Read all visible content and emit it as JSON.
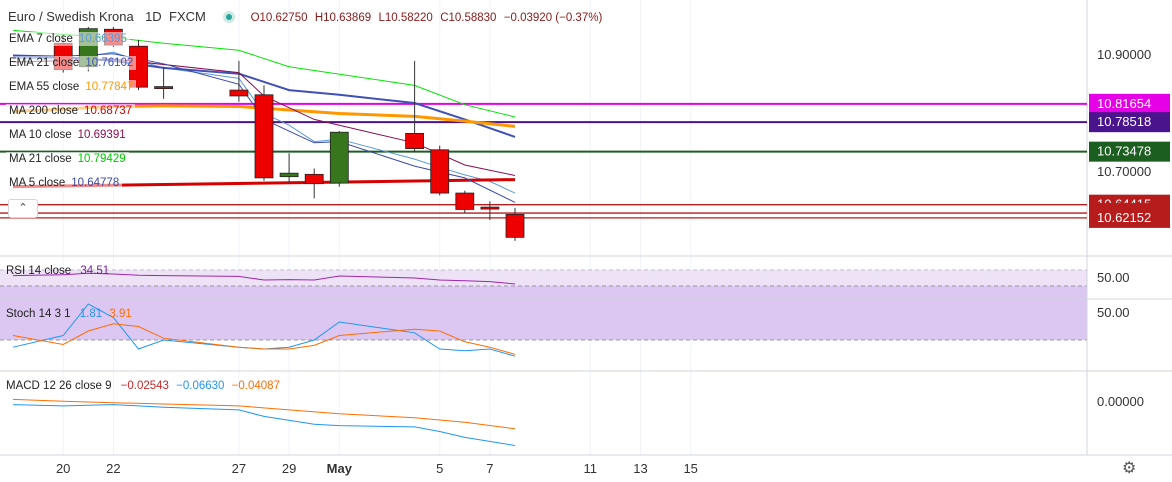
{
  "header": {
    "symbol": "Euro / Swedish Krona",
    "interval": "1D",
    "source": "FXCM",
    "open": "O10.62750",
    "high": "H10.63869",
    "low": "L10.58220",
    "close": "C10.58830",
    "change": "−0.03920 (−0.37%)"
  },
  "legend": [
    {
      "label": "EMA 7 close",
      "value": "10.66395",
      "color": "#5b9bd5"
    },
    {
      "label": "EMA 21 close",
      "value": "10.76102",
      "color": "#3f51b5"
    },
    {
      "label": "EMA 55 close",
      "value": "10.77847",
      "color": "#ff9800"
    },
    {
      "label": "MA 200 close",
      "value": "10.68737",
      "color": "#d50000"
    },
    {
      "label": "MA 10 close",
      "value": "10.69391",
      "color": "#880e4f"
    },
    {
      "label": "MA 21 close",
      "value": "10.79429",
      "color": "#00e600"
    },
    {
      "label": "MA 5 close",
      "value": "10.64778",
      "color": "#3949ab"
    }
  ],
  "rsi_panel": {
    "label": "RSI 14 close",
    "value": "34.51",
    "axis_label": "50.00"
  },
  "stoch_panel": {
    "label": "Stoch 14 3 1",
    "k_value": "1.81",
    "d_value": "3.91",
    "axis_label": "50.00"
  },
  "macd_panel": {
    "label": "MACD 12 26 close 9",
    "hist": "−0.02543",
    "macd": "−0.06630",
    "signal": "−0.04087",
    "axis_label": "0.00000"
  },
  "controls": {
    "collapse": "⌃",
    "settings": "⚙"
  },
  "chart_data": {
    "type": "candlestick",
    "y_axis_ticks": [
      "10.90000",
      "10.70000"
    ],
    "ylim": [
      10.6,
      10.95
    ],
    "x_ticks": [
      "20",
      "22",
      "27",
      "29",
      "May",
      "5",
      "7",
      "11",
      "13",
      "15"
    ],
    "x_slots": [
      "Apr 18",
      "Apr 19",
      "Apr 20",
      "Apr 21",
      "Apr 22",
      "Apr 23",
      "Apr 24",
      "Apr 25",
      "Apr 26",
      "Apr 27",
      "Apr 28",
      "Apr 29",
      "Apr 30",
      "May 1",
      "May 2",
      "May 3",
      "May 4",
      "May 5",
      "May 6",
      "May 7",
      "May 8",
      "May 9",
      "May 10",
      "May 11",
      "May 12",
      "May 13",
      "May 14",
      "May 15",
      "May 16"
    ],
    "candles": [
      {
        "x": "Apr 20",
        "open": 10.92,
        "high": 10.935,
        "low": 10.87,
        "close": 10.875
      },
      {
        "x": "Apr 21",
        "open": 10.88,
        "high": 10.948,
        "low": 10.872,
        "close": 10.945
      },
      {
        "x": "Apr 22",
        "open": 10.944,
        "high": 10.948,
        "low": 10.914,
        "close": 10.917
      },
      {
        "x": "Apr 23",
        "open": 10.915,
        "high": 10.926,
        "low": 10.84,
        "close": 10.845
      },
      {
        "x": "Apr 24",
        "open": 10.846,
        "high": 10.88,
        "low": 10.825,
        "close": 10.843
      },
      {
        "x": "Apr 27",
        "open": 10.84,
        "high": 10.89,
        "low": 10.82,
        "close": 10.83
      },
      {
        "x": "Apr 28",
        "open": 10.832,
        "high": 10.848,
        "low": 10.685,
        "close": 10.69
      },
      {
        "x": "Apr 29",
        "open": 10.692,
        "high": 10.732,
        "low": 10.68,
        "close": 10.698
      },
      {
        "x": "Apr 30",
        "open": 10.696,
        "high": 10.706,
        "low": 10.655,
        "close": 10.68
      },
      {
        "x": "May 1",
        "open": 10.681,
        "high": 10.77,
        "low": 10.675,
        "close": 10.768
      },
      {
        "x": "May 4",
        "open": 10.766,
        "high": 10.89,
        "low": 10.735,
        "close": 10.74
      },
      {
        "x": "May 5",
        "open": 10.738,
        "high": 10.745,
        "low": 10.66,
        "close": 10.664
      },
      {
        "x": "May 6",
        "open": 10.664,
        "high": 10.668,
        "low": 10.63,
        "close": 10.636
      },
      {
        "x": "May 7",
        "open": 10.64,
        "high": 10.65,
        "low": 10.618,
        "close": 10.638
      },
      {
        "x": "May 8",
        "open": 10.6275,
        "high": 10.63869,
        "low": 10.5822,
        "close": 10.5883
      }
    ],
    "overlay_series": [
      {
        "name": "EMA 7 close",
        "color": "#5b9bd5",
        "x": [
          "Apr 18",
          "Apr 20",
          "Apr 21",
          "Apr 22",
          "Apr 23",
          "Apr 24",
          "Apr 27",
          "Apr 28",
          "Apr 29",
          "Apr 30",
          "May 1",
          "May 4",
          "May 5",
          "May 6",
          "May 7",
          "May 8"
        ],
        "values": [
          10.895,
          10.893,
          10.898,
          10.905,
          10.89,
          10.878,
          10.86,
          10.8,
          10.78,
          10.752,
          10.756,
          10.722,
          10.708,
          10.695,
          10.684,
          10.664
        ]
      },
      {
        "name": "EMA 21 close",
        "color": "#3f51b5",
        "x": [
          "Apr 18",
          "Apr 20",
          "Apr 22",
          "Apr 24",
          "Apr 27",
          "Apr 29",
          "May 1",
          "May 4",
          "May 6",
          "May 8"
        ],
        "values": [
          10.898,
          10.896,
          10.89,
          10.878,
          10.868,
          10.84,
          10.832,
          10.818,
          10.79,
          10.76
        ]
      },
      {
        "name": "EMA 55 close",
        "color": "#ff9800",
        "x": [
          "Apr 18",
          "Apr 20",
          "Apr 21",
          "Apr 22",
          "Apr 24",
          "Apr 27",
          "May 1",
          "May 4",
          "May 6",
          "May 8"
        ],
        "values": [
          10.804,
          10.807,
          10.81,
          10.812,
          10.813,
          10.812,
          10.8,
          10.795,
          10.787,
          10.778
        ]
      },
      {
        "name": "MA 200 close",
        "color": "#d50000",
        "x": [
          "Apr 18",
          "May 8"
        ],
        "values": [
          10.675,
          10.687
        ]
      },
      {
        "name": "MA 10 close",
        "color": "#880e4f",
        "x": [
          "Apr 18",
          "Apr 20",
          "Apr 22",
          "Apr 27",
          "Apr 28",
          "Apr 30",
          "May 4",
          "May 6",
          "May 8"
        ],
        "values": [
          10.888,
          10.89,
          10.893,
          10.87,
          10.83,
          10.79,
          10.75,
          10.712,
          10.694
        ]
      },
      {
        "name": "MA 21 close",
        "color": "#00e600",
        "x": [
          "Apr 18",
          "Apr 20",
          "Apr 22",
          "Apr 24",
          "Apr 27",
          "Apr 29",
          "May 4",
          "May 6",
          "May 8"
        ],
        "values": [
          10.942,
          10.935,
          10.93,
          10.92,
          10.908,
          10.88,
          10.848,
          10.815,
          10.794
        ]
      },
      {
        "name": "MA 5 close",
        "color": "#3949ab",
        "x": [
          "Apr 18",
          "Apr 20",
          "Apr 22",
          "Apr 24",
          "Apr 27",
          "Apr 28",
          "Apr 30",
          "May 1",
          "May 4",
          "May 6",
          "May 8"
        ],
        "values": [
          10.9,
          10.898,
          10.902,
          10.885,
          10.85,
          10.79,
          10.75,
          10.752,
          10.71,
          10.69,
          10.648
        ]
      }
    ],
    "horizontal_levels": [
      {
        "label": "10.81654",
        "value": 10.81654,
        "color": "#e600e6"
      },
      {
        "label": "10.78518",
        "value": 10.78518,
        "color": "#4a148c"
      },
      {
        "label": "10.73478",
        "value": 10.73478,
        "color": "#1b5e20"
      },
      {
        "label": "10.64415",
        "value": 10.64415,
        "color": "#b71c1c"
      },
      {
        "label": "10.62984",
        "value": 10.62984,
        "color": "#b71c1c"
      },
      {
        "label": "10.62152",
        "value": 10.62152,
        "color": "#b71c1c"
      }
    ],
    "rsi": {
      "ylim": [
        0,
        100
      ],
      "band": [
        30,
        70
      ],
      "x": [
        "Apr 18",
        "Apr 20",
        "Apr 21",
        "Apr 22",
        "Apr 23",
        "Apr 24",
        "Apr 27",
        "Apr 28",
        "Apr 29",
        "Apr 30",
        "May 1",
        "May 4",
        "May 5",
        "May 6",
        "May 7",
        "May 8"
      ],
      "values": [
        56,
        58,
        62,
        60,
        57,
        56,
        54,
        45,
        46,
        45,
        55,
        50,
        45,
        43,
        41,
        35
      ]
    },
    "stoch": {
      "ylim": [
        0,
        100
      ],
      "band": [
        20,
        80
      ],
      "k": {
        "x": [
          "Apr 18",
          "Apr 20",
          "Apr 21",
          "Apr 22",
          "Apr 23",
          "Apr 24",
          "Apr 27",
          "Apr 28",
          "Apr 29",
          "Apr 30",
          "May 1",
          "May 4",
          "May 5",
          "May 6",
          "May 7",
          "May 8"
        ],
        "values": [
          12,
          25,
          60,
          45,
          10,
          20,
          12,
          10,
          12,
          20,
          40,
          28,
          10,
          8,
          10,
          2
        ]
      },
      "d": {
        "x": [
          "Apr 18",
          "Apr 20",
          "Apr 21",
          "Apr 22",
          "Apr 23",
          "Apr 24",
          "Apr 27",
          "Apr 28",
          "Apr 29",
          "Apr 30",
          "May 1",
          "May 4",
          "May 5",
          "May 6",
          "May 7",
          "May 8"
        ],
        "values": [
          25,
          15,
          30,
          38,
          35,
          22,
          12,
          10,
          10,
          14,
          25,
          32,
          30,
          18,
          12,
          4
        ]
      }
    },
    "macd": {
      "ylim": [
        -0.09,
        0.01
      ],
      "macd_line": {
        "x": [
          "Apr 18",
          "Apr 20",
          "Apr 22",
          "Apr 24",
          "Apr 27",
          "Apr 28",
          "Apr 30",
          "May 1",
          "May 4",
          "May 5",
          "May 6",
          "May 8"
        ],
        "values": [
          -0.004,
          -0.006,
          -0.004,
          -0.008,
          -0.012,
          -0.022,
          -0.034,
          -0.036,
          -0.038,
          -0.045,
          -0.054,
          -0.0663
        ]
      },
      "signal_line": {
        "x": [
          "Apr 18",
          "Apr 20",
          "Apr 22",
          "Apr 24",
          "Apr 27",
          "Apr 29",
          "May 1",
          "May 4",
          "May 6",
          "May 8"
        ],
        "values": [
          0.004,
          0.001,
          -0.001,
          -0.003,
          -0.006,
          -0.012,
          -0.018,
          -0.024,
          -0.031,
          -0.04087
        ]
      }
    }
  }
}
